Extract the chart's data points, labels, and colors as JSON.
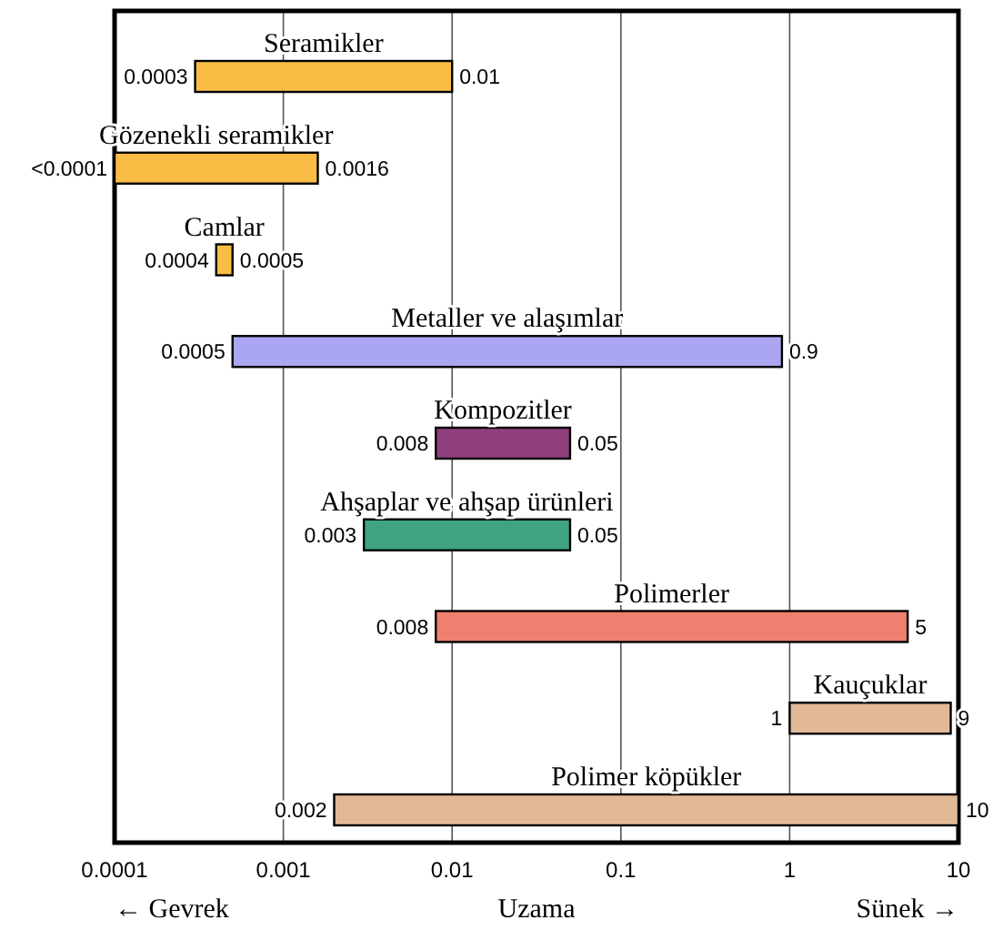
{
  "chart_data": {
    "type": "bar",
    "orientation": "horizontal",
    "log": "x",
    "xlabel": "Uzama",
    "categories": [
      "Seramikler",
      "Gözenekli seramikler",
      "Camlar",
      "Metaller ve alaşımlar",
      "Kompozitler",
      "Ahşaplar ve ahşap ürünleri",
      "Polimerler",
      "Kauçuklar",
      "Polimer köpükler"
    ],
    "base": [
      0.0003,
      0.0001,
      0.0004,
      0.0005,
      0.008,
      0.003,
      0.008,
      1,
      0.002
    ],
    "values": [
      0.0097,
      0.0015,
      0.0001,
      0.8995,
      0.042,
      0.047,
      4.992,
      8,
      9.998
    ],
    "colors": [
      "#f9bd45",
      "#f9bd45",
      "#f9bd45",
      "#aaa6f2",
      "#8e3f7c",
      "#3fa384",
      "#ef8070",
      "#e2b996",
      "#e2b996"
    ],
    "value_labels": [
      "0.01",
      "0.0016",
      "0.0005",
      "0.9",
      "0.05",
      "0.05",
      "5",
      "9",
      "10"
    ],
    "xlim": [
      0.0001,
      10
    ],
    "xticks": [
      0.0001,
      0.001,
      0.01,
      0.1,
      1,
      10
    ],
    "grid": "x",
    "annotations": [
      {
        "text": "0.0003",
        "x": 0.0003,
        "y": "Seramikler"
      },
      {
        "text": "<0.0001",
        "x": 0.0001,
        "y": "Gözenekli seramikler"
      },
      {
        "text": "0.0004",
        "x": 0.0004,
        "y": "Camlar"
      },
      {
        "text": "0.0005",
        "x": 0.0005,
        "y": "Metaller ve alaşımlar"
      },
      {
        "text": "0.008",
        "x": 0.008,
        "y": "Kompozitler"
      },
      {
        "text": "0.003",
        "x": 0.003,
        "y": "Ahşaplar ve ahşap ürünleri"
      },
      {
        "text": "0.008",
        "x": 0.008,
        "y": "Polimerler"
      },
      {
        "text": "1",
        "x": 1,
        "y": "Kauçuklar"
      },
      {
        "text": "0.002",
        "x": 0.002,
        "y": "Polimer köpükler"
      },
      "← Gevrek",
      "Sünek →"
    ]
  }
}
